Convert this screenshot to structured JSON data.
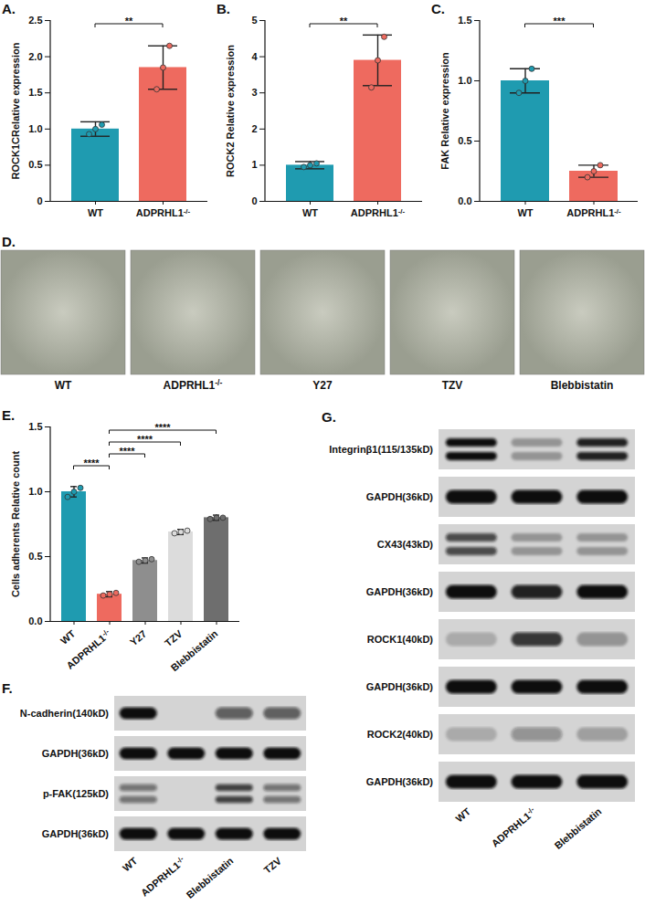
{
  "chart_data": [
    {
      "type": "bar",
      "title": "A.",
      "ylabel": "ROCK1CRelative expression",
      "categories": [
        "WT",
        "ADPRHL1-/-"
      ],
      "values": [
        1.0,
        1.85
      ],
      "errors": [
        0.1,
        0.3
      ],
      "points": [
        [
          0.93,
          1.0,
          1.06
        ],
        [
          1.55,
          1.85,
          2.15
        ]
      ],
      "colors": [
        "#1f9bb0",
        "#ee6a5f"
      ],
      "ylim": [
        0,
        2.5
      ],
      "yticks": [
        0,
        0.5,
        {
          "value": 1,
          "label": "1.0"
        },
        1.5,
        {
          "value": 2,
          "label": "2.0"
        },
        2.5
      ],
      "annotations": [
        {
          "from": "WT",
          "to": "ADPRHL1-/-",
          "text": "**"
        }
      ]
    },
    {
      "type": "bar",
      "title": "B.",
      "ylabel": "ROCK2 Relative expression",
      "categories": [
        "WT",
        "ADPRHL1-/-"
      ],
      "values": [
        1.0,
        3.9
      ],
      "errors": [
        0.1,
        0.7
      ],
      "points": [
        [
          0.95,
          1.0,
          1.05
        ],
        [
          3.15,
          3.9,
          4.55
        ]
      ],
      "colors": [
        "#1f9bb0",
        "#ee6a5f"
      ],
      "ylim": [
        0,
        5
      ],
      "yticks": [
        0,
        1,
        2,
        3,
        4,
        5
      ],
      "annotations": [
        {
          "from": "WT",
          "to": "ADPRHL1-/-",
          "text": "**"
        }
      ]
    },
    {
      "type": "bar",
      "title": "C.",
      "ylabel": "FAK Relative expression",
      "categories": [
        "WT",
        "ADPRHL1-/-"
      ],
      "values": [
        1.0,
        0.25
      ],
      "errors": [
        0.1,
        0.05
      ],
      "points": [
        [
          0.9,
          1.0,
          1.1
        ],
        [
          0.2,
          0.25,
          0.3
        ]
      ],
      "colors": [
        "#1f9bb0",
        "#ee6a5f"
      ],
      "ylim": [
        0,
        1.5
      ],
      "yticks": [
        {
          "value": 0,
          "label": "0.0"
        },
        0.5,
        {
          "value": 1,
          "label": "1.0"
        },
        1.5
      ],
      "annotations": [
        {
          "from": "WT",
          "to": "ADPRHL1-/-",
          "text": "***"
        }
      ]
    },
    {
      "type": "bar",
      "title": "E.",
      "ylabel": "Cells adherents Relative count",
      "categories": [
        "WT",
        "ADPRHL1-/-",
        "Y27",
        "TZV",
        "Blebbistatin"
      ],
      "values": [
        1.0,
        0.21,
        0.47,
        0.69,
        0.8
      ],
      "errors": [
        0.04,
        0.02,
        0.02,
        0.02,
        0.02
      ],
      "points": [
        [
          0.96,
          1.0,
          1.03
        ],
        [
          0.2,
          0.21,
          0.22
        ],
        [
          0.46,
          0.47,
          0.48
        ],
        [
          0.68,
          0.69,
          0.7
        ],
        [
          0.79,
          0.8,
          0.8
        ]
      ],
      "colors": [
        "#1f9bb0",
        "#ee6a5f",
        "#8e8e8e",
        "#dcdcdc",
        "#6e6e6e"
      ],
      "ylim": [
        0,
        1.5
      ],
      "yticks": [
        {
          "value": 0,
          "label": "0.0"
        },
        0.5,
        {
          "value": 1,
          "label": "1.0"
        },
        1.5
      ],
      "annotations": [
        {
          "from": "WT",
          "to": "ADPRHL1-/-",
          "text": "****"
        },
        {
          "from": "ADPRHL1-/-",
          "to": "Y27",
          "text": "****"
        },
        {
          "from": "ADPRHL1-/-",
          "to": "TZV",
          "text": "****"
        },
        {
          "from": "ADPRHL1-/-",
          "to": "Blebbistatin",
          "text": "****"
        }
      ]
    }
  ],
  "images": {
    "title": "D.",
    "labels": [
      "WT",
      "ADPRHL1-/-",
      "Y27",
      "TZV",
      "Blebbistatin"
    ]
  },
  "blots": [
    {
      "title": "F.",
      "lanes": [
        "WT",
        "ADPRHL1-/-",
        "Blebbistatin",
        "TZV"
      ],
      "rows": [
        {
          "label": "N-cadherin(140kD)",
          "bands": 1,
          "intensity": [
            1.0,
            0.0,
            0.6,
            0.6
          ]
        },
        {
          "label": "GAPDH(36kD)",
          "bands": 1,
          "intensity": [
            1.0,
            1.0,
            1.0,
            1.0
          ]
        },
        {
          "label": "p-FAK(125kD)",
          "bands": 2,
          "intensity": [
            0.5,
            0.0,
            0.75,
            0.5
          ]
        },
        {
          "label": "GAPDH(36kD)",
          "bands": 1,
          "intensity": [
            1.0,
            1.0,
            1.0,
            1.0
          ]
        }
      ]
    },
    {
      "title": "G.",
      "lanes": [
        "WT",
        "ADPRHL1-/-",
        "Blebbistatin"
      ],
      "rows": [
        {
          "label": "Integrinβ1(115/135kD)",
          "bands": 2,
          "intensity": [
            1.0,
            0.3,
            0.9
          ]
        },
        {
          "label": "GAPDH(36kD)",
          "bands": 1,
          "intensity": [
            1.0,
            1.0,
            1.0
          ]
        },
        {
          "label": "CX43(43kD)",
          "bands": 2,
          "intensity": [
            0.7,
            0.3,
            0.3
          ]
        },
        {
          "label": "GAPDH(36kD)",
          "bands": 1,
          "intensity": [
            1.0,
            0.9,
            1.0
          ]
        },
        {
          "label": "ROCK1(40kD)",
          "bands": 1,
          "intensity": [
            0.2,
            0.8,
            0.3
          ]
        },
        {
          "label": "GAPDH(36kD)",
          "bands": 1,
          "intensity": [
            1.0,
            1.0,
            1.0
          ]
        },
        {
          "label": "ROCK2(40kD)",
          "bands": 1,
          "intensity": [
            0.2,
            0.35,
            0.25
          ]
        },
        {
          "label": "GAPDH(36kD)",
          "bands": 1,
          "intensity": [
            1.0,
            1.0,
            1.0
          ]
        }
      ]
    }
  ]
}
